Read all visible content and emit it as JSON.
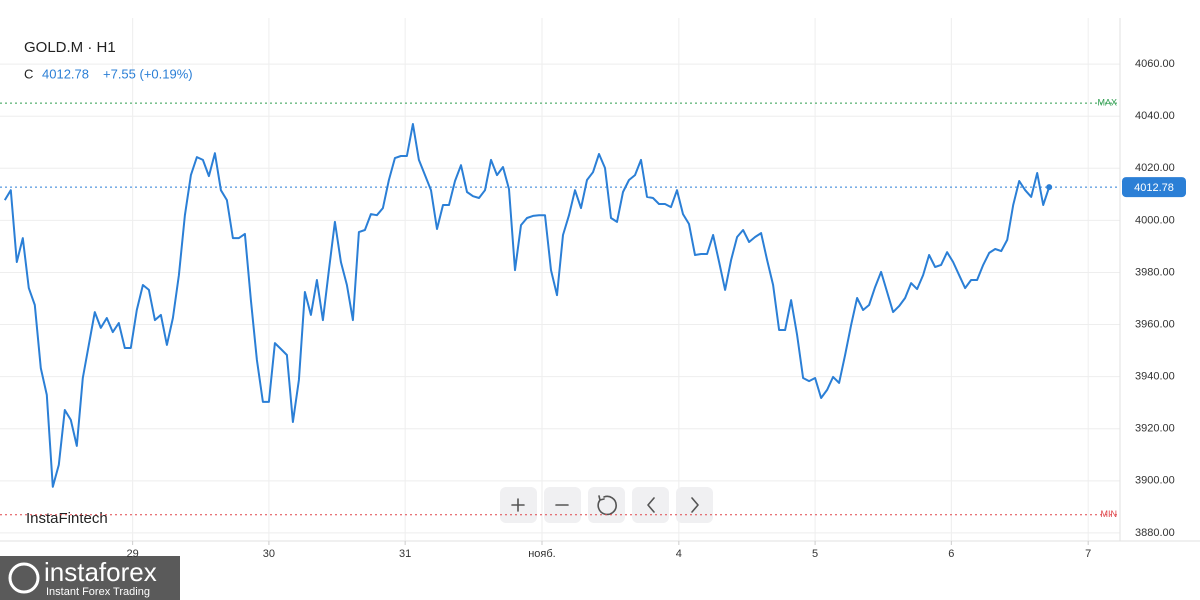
{
  "header": {
    "symbol": "GOLD.M · H1",
    "close_label": "C",
    "change": "+7.55 (+0.19%)"
  },
  "chart_data": {
    "type": "line",
    "color": "#2b7fd6",
    "grid": true,
    "ylim": [
      3876.9,
      4077.7
    ],
    "yticks": [
      {
        "value": 3880,
        "label": "3880.00"
      },
      {
        "value": 3900,
        "label": "3900.00"
      },
      {
        "value": 3920,
        "label": "3920.00"
      },
      {
        "value": 3940,
        "label": "3940.00"
      },
      {
        "value": 3960,
        "label": "3960.00"
      },
      {
        "value": 3980,
        "label": "3980.00"
      },
      {
        "value": 4000,
        "label": "4000.00"
      },
      {
        "value": 4020,
        "label": "4020.00"
      },
      {
        "value": 4040,
        "label": "4040.00"
      },
      {
        "value": 4060,
        "label": "4060.00"
      }
    ],
    "xlim": [
      -0.8,
      185.8
    ],
    "xticks": [
      {
        "value": 21.3,
        "label": "29"
      },
      {
        "value": 44,
        "label": "30"
      },
      {
        "value": 66.7,
        "label": "31"
      },
      {
        "value": 89.5,
        "label": "нояб."
      },
      {
        "value": 112.3,
        "label": "4"
      },
      {
        "value": 135,
        "label": "5"
      },
      {
        "value": 157.7,
        "label": "6"
      },
      {
        "value": 180.5,
        "label": "7"
      }
    ],
    "last_price": 4012.78,
    "max_line": {
      "value": 4045,
      "label": "MAX",
      "color": "#2e9e4f"
    },
    "min_line": {
      "value": 3887,
      "label": "MIN",
      "color": "#e0474c"
    },
    "values": [
      4007.8,
      4011.6,
      3984.0,
      3993.2,
      3974.0,
      3967.5,
      3943.3,
      3933.0,
      3897.7,
      3906.1,
      3927.2,
      3923.4,
      3913.4,
      3939.5,
      3952.2,
      3964.8,
      3958.7,
      3962.5,
      3957.1,
      3960.6,
      3951.0,
      3951.0,
      3965.6,
      3975.2,
      3973.3,
      3961.7,
      3963.7,
      3952.2,
      3962.5,
      3979.0,
      4002.0,
      4017.4,
      4024.3,
      4023.2,
      4017.0,
      4025.8,
      4011.6,
      4007.8,
      3993.2,
      3993.2,
      3994.8,
      3969.4,
      3946.4,
      3930.3,
      3930.3,
      3952.9,
      3950.6,
      3948.3,
      3922.6,
      3938.7,
      3972.5,
      3963.7,
      3977.1,
      3961.7,
      3980.9,
      3999.4,
      3984.0,
      3975.2,
      3961.7,
      3995.5,
      3996.3,
      4002.4,
      4002.0,
      4004.7,
      4015.5,
      4023.9,
      4024.7,
      4024.7,
      4037.0,
      4023.2,
      4017.4,
      4011.6,
      3996.7,
      4005.9,
      4005.9,
      4015.1,
      4021.2,
      4010.9,
      4009.3,
      4008.6,
      4011.6,
      4023.2,
      4017.4,
      4020.5,
      4012.0,
      3980.9,
      3998.2,
      4000.9,
      4001.7,
      4002.0,
      4002.0,
      3980.9,
      3971.3,
      3994.4,
      4002.0,
      4011.6,
      4004.7,
      4015.5,
      4018.5,
      4025.5,
      4020.1,
      4000.9,
      3999.4,
      4010.9,
      4015.5,
      4017.4,
      4023.2,
      4009.0,
      4008.6,
      4006.3,
      4006.3,
      4005.1,
      4011.6,
      4002.4,
      3998.6,
      3986.7,
      3987.1,
      3987.1,
      3994.4,
      3984.0,
      3973.3,
      3984.8,
      3993.6,
      3996.3,
      3991.7,
      3993.6,
      3995.1,
      3984.8,
      3975.2,
      3957.9,
      3957.9,
      3969.4,
      3956.0,
      3939.5,
      3938.3,
      3939.5,
      3931.8,
      3934.9,
      3939.9,
      3937.6,
      3948.3,
      3959.8,
      3970.2,
      3965.6,
      3967.5,
      3974.4,
      3980.2,
      3972.5,
      3964.8,
      3967.1,
      3970.2,
      3975.9,
      3973.6,
      3979.0,
      3986.7,
      3982.1,
      3982.9,
      3987.8,
      3984.0,
      3979.0,
      3974.0,
      3977.1,
      3977.1,
      3982.9,
      3987.5,
      3989.0,
      3988.2,
      3992.5,
      4005.9,
      4015.1,
      4011.6,
      4009.0,
      4018.2,
      4005.9,
      4012.78
    ]
  },
  "branding": {
    "watermark": "InstaFintech",
    "logo": "instaforex",
    "tagline": "Instant Forex Trading"
  }
}
